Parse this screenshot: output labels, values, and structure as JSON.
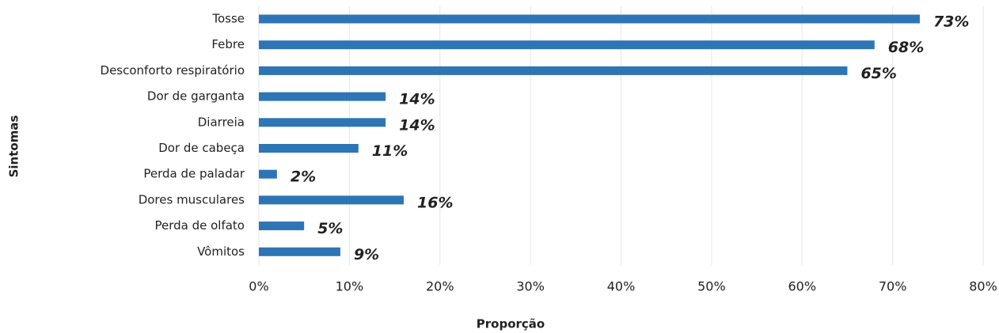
{
  "chart_data": {
    "type": "bar",
    "orientation": "horizontal",
    "categories": [
      "Tosse",
      "Febre",
      "Desconforto respiratório",
      "Dor de garganta",
      "Diarreia",
      "Dor de cabeça",
      "Perda de paladar",
      "Dores musculares",
      "Perda de olfato",
      "Vômitos"
    ],
    "values": [
      73,
      68,
      65,
      14,
      14,
      11,
      2,
      16,
      5,
      9
    ],
    "value_labels": [
      "73%",
      "68%",
      "65%",
      "14%",
      "14%",
      "11%",
      "2%",
      "16%",
      "5%",
      "9%"
    ],
    "color": "#2e75b6",
    "xlim": [
      0,
      80
    ],
    "xticks": [
      {
        "value": 0,
        "label": "0%"
      },
      {
        "value": 10,
        "label": "10%"
      },
      {
        "value": 20,
        "label": "20%"
      },
      {
        "value": 30,
        "label": "30%"
      },
      {
        "value": 40,
        "label": "40%"
      },
      {
        "value": 50,
        "label": "50%"
      },
      {
        "value": 60,
        "label": "60%"
      },
      {
        "value": 70,
        "label": "70%"
      },
      {
        "value": 80,
        "label": "80%"
      }
    ],
    "grid": true,
    "xlabel": "Proporção",
    "ylabel": "Sintomas"
  }
}
